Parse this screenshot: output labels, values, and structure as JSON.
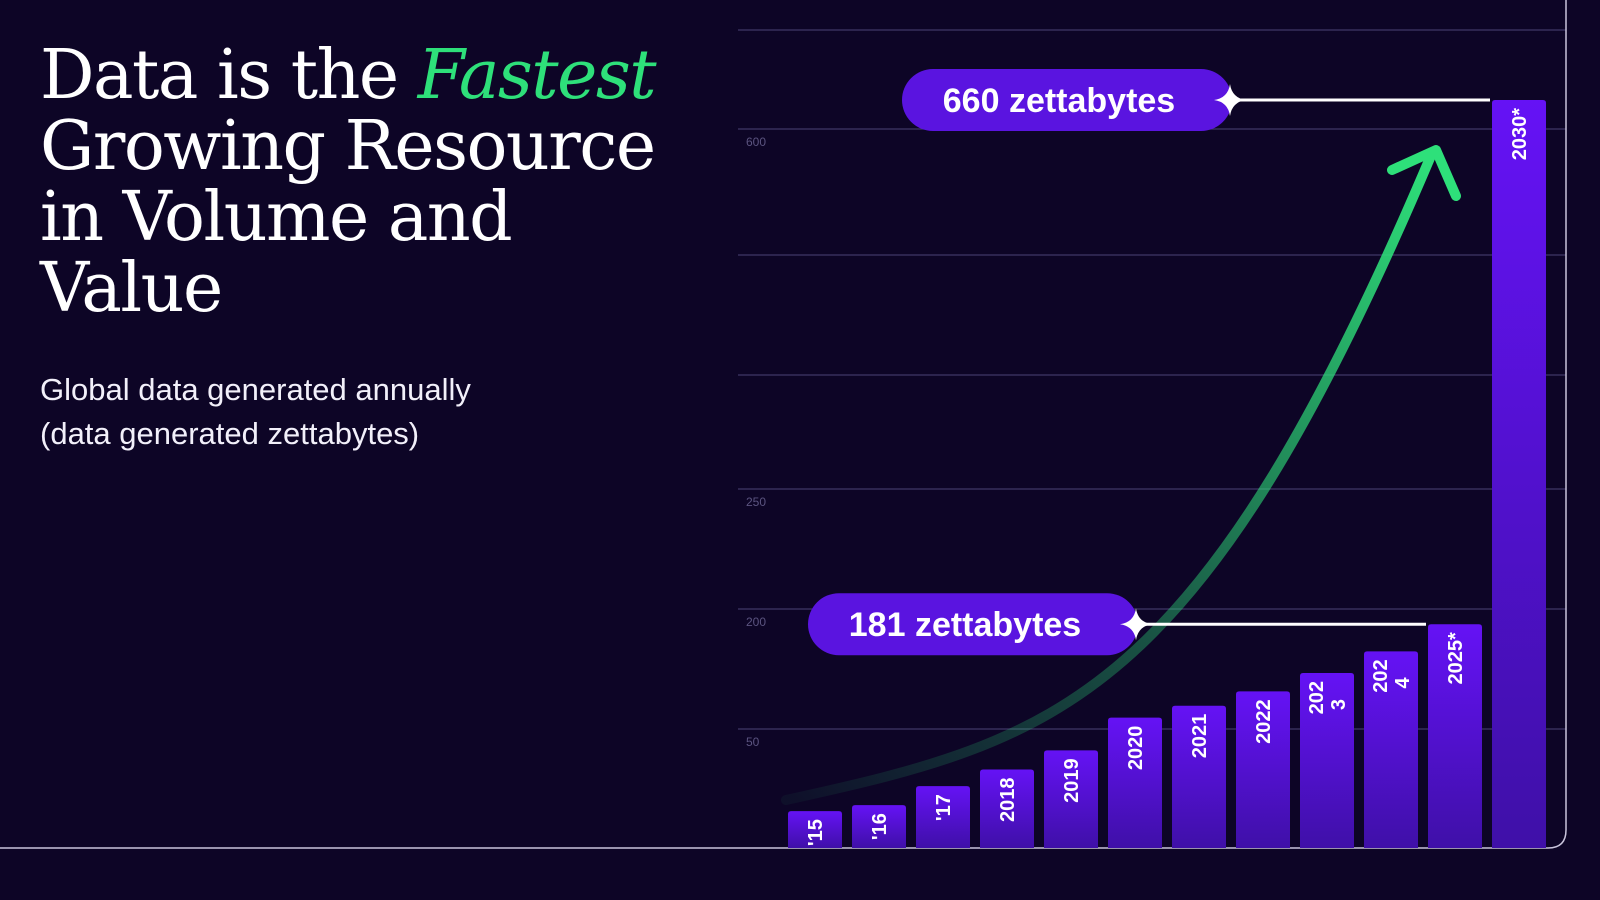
{
  "heading": {
    "line1_pre": "Data is the ",
    "line1_accent": "Fastest",
    "line2": "Growing Resource",
    "line3": "in Volume and",
    "line4": "Value"
  },
  "subtitle": {
    "line1": "Global data generated annually",
    "line2": "(data generated zettabytes)"
  },
  "colors": {
    "background": "#0d0526",
    "accent": "#2ee07a",
    "bar": "#5a14e0",
    "callout": "#5a14e0"
  },
  "chart_data": {
    "type": "bar",
    "categories": [
      "'15",
      "'16",
      "'17",
      "2018",
      "2019",
      "2020",
      "2021",
      "2022",
      "2023",
      "2024",
      "2025*",
      "2030*"
    ],
    "category_labels": [
      "'15",
      "'16",
      "'17",
      "2018",
      "2019",
      "2020",
      "2021",
      "2022",
      "202\n3",
      "202\n4",
      "2025*",
      "2030*"
    ],
    "values": [
      15.5,
      18,
      26,
      33,
      41,
      64.2,
      79,
      97,
      120,
      147,
      181,
      660
    ],
    "yticks": [
      50,
      200,
      250,
      600
    ],
    "grid": true,
    "annotations": [
      {
        "label": "181 zettabytes",
        "value": 181
      },
      {
        "label": "660 zettabytes",
        "value": 660
      }
    ],
    "trend_arrow": "green curved arrow rising from 2015 toward 2030"
  }
}
